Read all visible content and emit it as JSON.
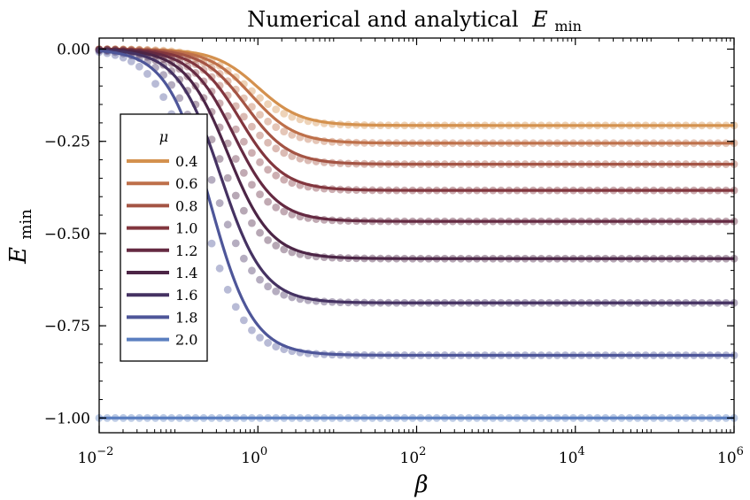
{
  "chart_data": {
    "type": "line",
    "title": "Numerical and analytical",
    "title_symbol": "E",
    "title_subscript": "min",
    "xlabel": "β",
    "ylabel": "E",
    "ylabel_subscript": "min",
    "xscale": "log",
    "xlim": [
      0.01,
      1000000
    ],
    "ylim": [
      -1.04,
      0.03
    ],
    "x_ticks": [
      {
        "base": "10",
        "exp": "−2",
        "value": 0.01
      },
      {
        "base": "10",
        "exp": "0",
        "value": 1
      },
      {
        "base": "10",
        "exp": "2",
        "value": 100
      },
      {
        "base": "10",
        "exp": "4",
        "value": 10000
      },
      {
        "base": "10",
        "exp": "6",
        "value": 1000000
      }
    ],
    "y_ticks": [
      {
        "label": "0.00",
        "value": 0.0
      },
      {
        "label": "−0.25",
        "value": -0.25
      },
      {
        "label": "−0.50",
        "value": -0.5
      },
      {
        "label": "−0.75",
        "value": -0.75
      },
      {
        "label": "−1.00",
        "value": -1.0
      }
    ],
    "grid": false,
    "legend_title": "μ",
    "legend_position": "left-center",
    "series": [
      {
        "name": "0.4",
        "color": "#d4914e",
        "asymptote": -0.207,
        "beta_half": 1.0
      },
      {
        "name": "0.6",
        "color": "#be704a",
        "asymptote": -0.255,
        "beta_half": 0.85
      },
      {
        "name": "0.8",
        "color": "#a45444",
        "asymptote": -0.312,
        "beta_half": 0.72
      },
      {
        "name": "1.0",
        "color": "#82363e",
        "asymptote": -0.383,
        "beta_half": 0.6
      },
      {
        "name": "1.2",
        "color": "#652a42",
        "asymptote": -0.467,
        "beta_half": 0.5
      },
      {
        "name": "1.4",
        "color": "#4c2546",
        "asymptote": -0.568,
        "beta_half": 0.42
      },
      {
        "name": "1.6",
        "color": "#453262",
        "asymptote": -0.688,
        "beta_half": 0.34
      },
      {
        "name": "1.8",
        "color": "#4e5699",
        "asymptote": -0.83,
        "beta_half": 0.25
      },
      {
        "name": "2.0",
        "color": "#5b7fc0",
        "asymptote": -1.0,
        "beta_half": 0
      }
    ]
  }
}
